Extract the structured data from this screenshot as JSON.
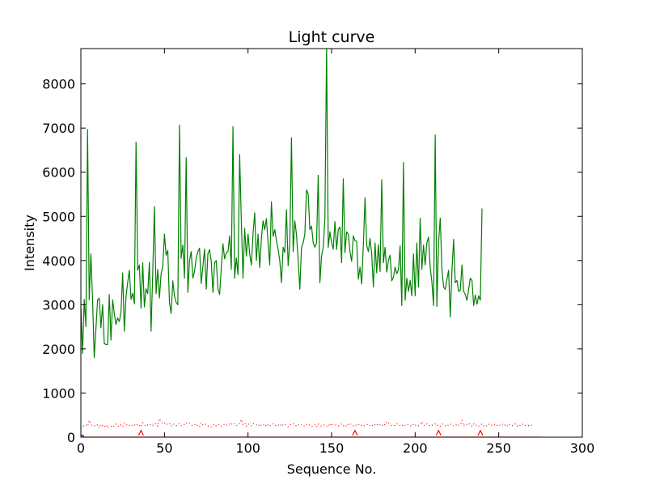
{
  "chart_data": {
    "type": "line",
    "title": "Light curve",
    "xlabel": "Sequence No.",
    "ylabel": "Intensity",
    "xlim": [
      0,
      300
    ],
    "ylim": [
      0,
      8800
    ],
    "xticks": [
      0,
      50,
      100,
      150,
      200,
      250,
      300
    ],
    "yticks": [
      0,
      1000,
      2000,
      3000,
      4000,
      5000,
      6000,
      7000,
      8000
    ],
    "grid": false,
    "legend": "none",
    "series": [
      {
        "style": "solid",
        "color": "#008000",
        "values": [
          2950,
          1900,
          3120,
          2500,
          6970,
          3110,
          4150,
          3100,
          1800,
          2450,
          3110,
          3150,
          2480,
          3000,
          2120,
          2100,
          2100,
          3230,
          2200,
          3110,
          2800,
          2550,
          2700,
          2620,
          2830,
          3720,
          2400,
          3180,
          3500,
          3780,
          3120,
          3260,
          3020,
          6680,
          3780,
          3900,
          2920,
          3950,
          2950,
          3360,
          3250,
          3960,
          2400,
          3720,
          5220,
          3250,
          3800,
          3150,
          3700,
          3880,
          4600,
          4120,
          4230,
          3050,
          2800,
          3540,
          3200,
          3050,
          3000,
          7070,
          4050,
          4350,
          3600,
          6330,
          3280,
          4000,
          4200,
          3600,
          3750,
          4060,
          4200,
          4280,
          3480,
          3870,
          4260,
          3350,
          4150,
          4250,
          3980,
          3280,
          3950,
          4000,
          3360,
          3230,
          3820,
          4380,
          4040,
          4180,
          4200,
          4560,
          3800,
          7030,
          3600,
          4060,
          3680,
          6400,
          4900,
          3600,
          4730,
          4100,
          4600,
          4150,
          3900,
          4600,
          5080,
          4000,
          4600,
          3840,
          4500,
          4900,
          4700,
          4950,
          4400,
          3900,
          5330,
          4550,
          4700,
          4450,
          4250,
          4000,
          3500,
          4300,
          4180,
          5150,
          3880,
          4400,
          6780,
          4200,
          4900,
          4590,
          4000,
          3350,
          4300,
          4400,
          4600,
          5600,
          5500,
          4700,
          4780,
          4400,
          4300,
          4400,
          5930,
          3500,
          4100,
          4300,
          4950,
          8830,
          4300,
          4650,
          4400,
          4260,
          4880,
          4250,
          4700,
          4760,
          3950,
          5850,
          4180,
          4650,
          4600,
          4200,
          3980,
          4560,
          4450,
          4430,
          3580,
          3850,
          3470,
          4350,
          5420,
          4350,
          4200,
          4500,
          4150,
          3400,
          4400,
          3720,
          4360,
          3750,
          5830,
          3950,
          4300,
          3740,
          4000,
          4120,
          3540,
          3620,
          3850,
          3700,
          3800,
          4330,
          2980,
          6220,
          3100,
          3600,
          3300,
          3550,
          3200,
          4150,
          3200,
          4400,
          3400,
          4960,
          3800,
          4350,
          3900,
          4400,
          4530,
          3840,
          3520,
          2980,
          6840,
          2960,
          4400,
          4960,
          3820,
          3400,
          3350,
          3570,
          3780,
          2720,
          3760,
          4480,
          3500,
          3550,
          3300,
          3330,
          3900,
          3300,
          3230,
          3100,
          3350,
          3600,
          3550,
          2980,
          3220,
          3010,
          3200,
          3100,
          5180
        ]
      },
      {
        "style": "dotted",
        "color": "#ff0000",
        "values": [
          220,
          260,
          250,
          280,
          250,
          380,
          300,
          250,
          260,
          250,
          280,
          210,
          290,
          250,
          230,
          280,
          210,
          250,
          250,
          230,
          260,
          300,
          250,
          240,
          280,
          240,
          320,
          300,
          250,
          260,
          280,
          250,
          280,
          260,
          300,
          270,
          240,
          330,
          280,
          250,
          280,
          300,
          260,
          270,
          280,
          310,
          250,
          420,
          350,
          310,
          320,
          280,
          300,
          320,
          250,
          300,
          290,
          260,
          280,
          310,
          260,
          280,
          290,
          330,
          300,
          310,
          280,
          260,
          280,
          300,
          250,
          240,
          330,
          280,
          300,
          290,
          250,
          260,
          240,
          280,
          300,
          260,
          280,
          290,
          250,
          270,
          300,
          280,
          260,
          310,
          290,
          320,
          300,
          260,
          280,
          310,
          400,
          290,
          330,
          250,
          300,
          280,
          260,
          310,
          300,
          280,
          250,
          300,
          260,
          280,
          300,
          240,
          280,
          250,
          290,
          300,
          260,
          280,
          270,
          300,
          250,
          280,
          300,
          260,
          240,
          280,
          290,
          310,
          300,
          250,
          270,
          300,
          290,
          260,
          250,
          280,
          300,
          270,
          240,
          260,
          280,
          230,
          300,
          260,
          250,
          280,
          270,
          250,
          240,
          310,
          260,
          300,
          290,
          260,
          250,
          280,
          300,
          260,
          280,
          240,
          310,
          300,
          280,
          260,
          250,
          290,
          280,
          300,
          260,
          250,
          270,
          280,
          300,
          260,
          280,
          250,
          290,
          300,
          260,
          280,
          250,
          300,
          280,
          350,
          320,
          280,
          260,
          250,
          280,
          300,
          290,
          260,
          280,
          250,
          270,
          300,
          280,
          260,
          250,
          300,
          270,
          280,
          260,
          290,
          350,
          280,
          260,
          300,
          280,
          250,
          270,
          280,
          300,
          260,
          280,
          250,
          300,
          290,
          260,
          250,
          280,
          300,
          280,
          260,
          250,
          300,
          270,
          280,
          380,
          260,
          300,
          290,
          320,
          280,
          250,
          300,
          260,
          280,
          250,
          270,
          300,
          260,
          280,
          250,
          290,
          300,
          260,
          280,
          300,
          270,
          250,
          280,
          300,
          260,
          280,
          250,
          300,
          270,
          260,
          280,
          300,
          250,
          280,
          260,
          290,
          300,
          270,
          280,
          260,
          280,
          270
        ]
      },
      {
        "style": "solid",
        "color": "#ff0000",
        "values": [
          0,
          0,
          0,
          0,
          0,
          0,
          0,
          0,
          0,
          0,
          0,
          0,
          0,
          0,
          0,
          0,
          0,
          0,
          0,
          0,
          0,
          0,
          0,
          0,
          0,
          0,
          0,
          0,
          0,
          0,
          0,
          0,
          0,
          0,
          0,
          0,
          0,
          0,
          0,
          0,
          0,
          0,
          0,
          0,
          0,
          0,
          0,
          0,
          0,
          0,
          0,
          0,
          0,
          0,
          0,
          0,
          0,
          0,
          0,
          0,
          0,
          0,
          0,
          0,
          0,
          0,
          0,
          0,
          0,
          0,
          0,
          0,
          0,
          0,
          0,
          0,
          0,
          0,
          0,
          0,
          0,
          0,
          0,
          0,
          0,
          0,
          0,
          0,
          0,
          0,
          0,
          0,
          0,
          0,
          0,
          0,
          0,
          0,
          0,
          0,
          0,
          0,
          0,
          0,
          0,
          0,
          0,
          0,
          0,
          0,
          0,
          0,
          0,
          0,
          0,
          0,
          0,
          0,
          0,
          0,
          0,
          0,
          0,
          0,
          0,
          0,
          0,
          0,
          0,
          0,
          0,
          0,
          0,
          0,
          0,
          0,
          0,
          0,
          0,
          0,
          0,
          0,
          0,
          0,
          0,
          0,
          0,
          0,
          0,
          0,
          0,
          0,
          0,
          0,
          0,
          0,
          0,
          0,
          0,
          0,
          0,
          0,
          0,
          0,
          0,
          0,
          0,
          0,
          0,
          0,
          0,
          0,
          0,
          0,
          0,
          0,
          0,
          0,
          0,
          0,
          0,
          0,
          0,
          0,
          0,
          0,
          0,
          0,
          0,
          0,
          0,
          0,
          0,
          0,
          0,
          0,
          0,
          0,
          0,
          0,
          0,
          0,
          0,
          0,
          0,
          0,
          0,
          0,
          0,
          0,
          0,
          0,
          0,
          0,
          0,
          0,
          0,
          0,
          0,
          0,
          0,
          0,
          0,
          0,
          0,
          0,
          0,
          0,
          0,
          0,
          0,
          0,
          0,
          0,
          0,
          0,
          0,
          0,
          0,
          0,
          0,
          0,
          0,
          0,
          0,
          0,
          0,
          0,
          0,
          0,
          0,
          0,
          0,
          0,
          0,
          0,
          0,
          0,
          0,
          0,
          0,
          0,
          0,
          0,
          0,
          0,
          0,
          0,
          0,
          0,
          0,
          0,
          0,
          0,
          0,
          0
        ]
      },
      {
        "style": "markers",
        "color": "#ff0000",
        "x": [
          36,
          164,
          214,
          239
        ],
        "values": [
          60,
          60,
          60,
          60
        ]
      },
      {
        "style": "solid",
        "color": "#0000ff",
        "x": [
          0,
          1,
          2
        ],
        "values": [
          30,
          50,
          0
        ]
      }
    ]
  }
}
